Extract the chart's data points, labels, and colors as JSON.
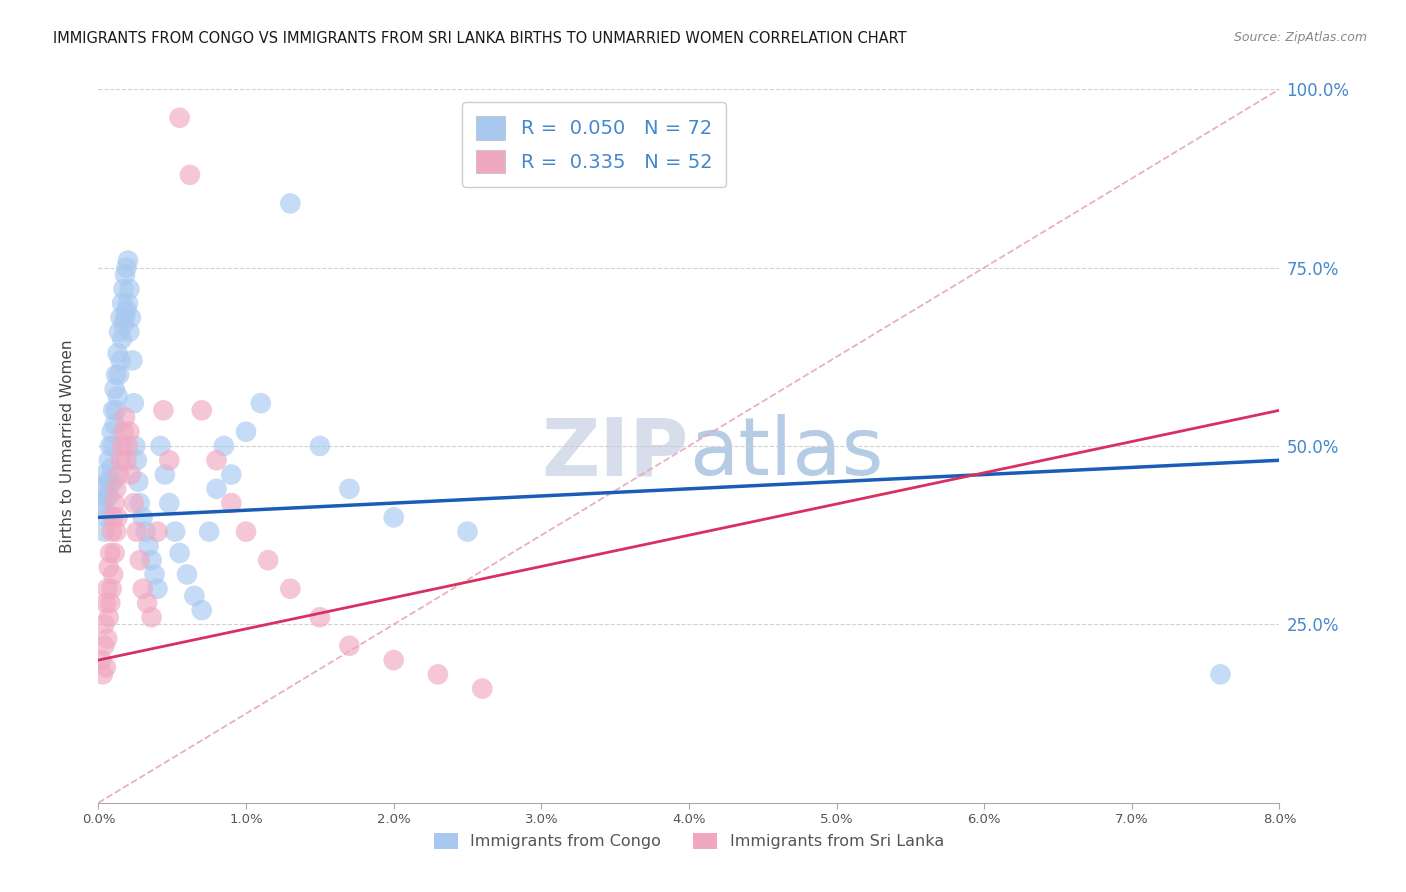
{
  "title": "IMMIGRANTS FROM CONGO VS IMMIGRANTS FROM SRI LANKA BIRTHS TO UNMARRIED WOMEN CORRELATION CHART",
  "source": "Source: ZipAtlas.com",
  "ylabel": "Births to Unmarried Women",
  "legend_label_congo": "Immigrants from Congo",
  "legend_label_srilanka": "Immigrants from Sri Lanka",
  "color_congo": "#A8C8F0",
  "color_srilanka": "#F0A8C0",
  "color_trendline_congo": "#1A5CB8",
  "color_trendline_srilanka": "#D83060",
  "color_diagonal": "#E8A8B8",
  "color_gridlines": "#CCCCCC",
  "color_yticks": "#4488CC",
  "title_color": "#1A1A1A",
  "background_color": "#FFFFFF",
  "xlim": [
    0.0,
    0.08
  ],
  "ylim": [
    0.0,
    1.0
  ],
  "R_congo": 0.05,
  "R_srilanka": 0.335,
  "N_congo": 72,
  "N_srilanka": 52,
  "congo_x": [
    0.0002,
    0.0003,
    0.0004,
    0.0004,
    0.0005,
    0.0005,
    0.0006,
    0.0006,
    0.0007,
    0.0007,
    0.0008,
    0.0008,
    0.0009,
    0.0009,
    0.001,
    0.001,
    0.001,
    0.0011,
    0.0011,
    0.0012,
    0.0012,
    0.0013,
    0.0013,
    0.0014,
    0.0014,
    0.0015,
    0.0015,
    0.0016,
    0.0016,
    0.0017,
    0.0017,
    0.0018,
    0.0018,
    0.0019,
    0.0019,
    0.002,
    0.002,
    0.0021,
    0.0021,
    0.0022,
    0.0023,
    0.0024,
    0.0025,
    0.0026,
    0.0027,
    0.0028,
    0.003,
    0.0032,
    0.0034,
    0.0036,
    0.0038,
    0.004,
    0.0042,
    0.0045,
    0.0048,
    0.0052,
    0.0055,
    0.006,
    0.0065,
    0.007,
    0.0075,
    0.008,
    0.0085,
    0.009,
    0.01,
    0.011,
    0.013,
    0.015,
    0.017,
    0.02,
    0.025,
    0.076
  ],
  "congo_y": [
    0.42,
    0.44,
    0.38,
    0.46,
    0.41,
    0.43,
    0.45,
    0.4,
    0.48,
    0.43,
    0.5,
    0.45,
    0.52,
    0.47,
    0.55,
    0.5,
    0.45,
    0.58,
    0.53,
    0.6,
    0.55,
    0.63,
    0.57,
    0.66,
    0.6,
    0.68,
    0.62,
    0.7,
    0.65,
    0.72,
    0.67,
    0.74,
    0.68,
    0.75,
    0.69,
    0.76,
    0.7,
    0.72,
    0.66,
    0.68,
    0.62,
    0.56,
    0.5,
    0.48,
    0.45,
    0.42,
    0.4,
    0.38,
    0.36,
    0.34,
    0.32,
    0.3,
    0.5,
    0.46,
    0.42,
    0.38,
    0.35,
    0.32,
    0.29,
    0.27,
    0.38,
    0.44,
    0.5,
    0.46,
    0.52,
    0.56,
    0.84,
    0.5,
    0.44,
    0.4,
    0.38,
    0.18
  ],
  "srilanka_x": [
    0.0002,
    0.0003,
    0.0004,
    0.0004,
    0.0005,
    0.0005,
    0.0006,
    0.0006,
    0.0007,
    0.0007,
    0.0008,
    0.0008,
    0.0009,
    0.0009,
    0.001,
    0.001,
    0.0011,
    0.0011,
    0.0012,
    0.0012,
    0.0013,
    0.0014,
    0.0015,
    0.0016,
    0.0017,
    0.0018,
    0.0019,
    0.002,
    0.0021,
    0.0022,
    0.0024,
    0.0026,
    0.0028,
    0.003,
    0.0033,
    0.0036,
    0.004,
    0.0044,
    0.0048,
    0.0055,
    0.0062,
    0.007,
    0.008,
    0.009,
    0.01,
    0.0115,
    0.013,
    0.015,
    0.017,
    0.02,
    0.023,
    0.026
  ],
  "srilanka_y": [
    0.2,
    0.18,
    0.22,
    0.25,
    0.19,
    0.28,
    0.23,
    0.3,
    0.26,
    0.33,
    0.28,
    0.35,
    0.3,
    0.38,
    0.32,
    0.4,
    0.35,
    0.42,
    0.38,
    0.44,
    0.4,
    0.46,
    0.48,
    0.5,
    0.52,
    0.54,
    0.48,
    0.5,
    0.52,
    0.46,
    0.42,
    0.38,
    0.34,
    0.3,
    0.28,
    0.26,
    0.38,
    0.55,
    0.48,
    0.96,
    0.88,
    0.55,
    0.48,
    0.42,
    0.38,
    0.34,
    0.3,
    0.26,
    0.22,
    0.2,
    0.18,
    0.16
  ],
  "congo_trendline_y0": 0.4,
  "congo_trendline_y1": 0.48,
  "srilanka_trendline_y0": 0.2,
  "srilanka_trendline_y1": 0.55
}
